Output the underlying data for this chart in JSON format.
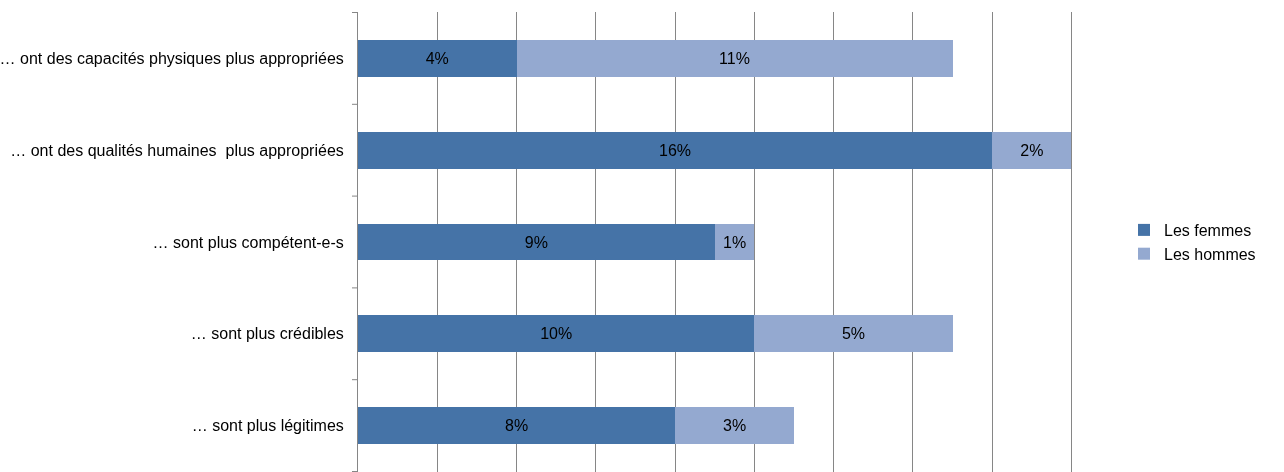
{
  "chart_data": {
    "type": "bar",
    "orientation": "horizontal",
    "stacked": true,
    "categories": [
      "… ont des capacités physiques plus appropriées",
      "… ont des qualités humaines  plus appropriées",
      "… sont plus compétent-e-s",
      "… sont plus crédibles",
      "… sont plus légitimes"
    ],
    "series": [
      {
        "name": "Les femmes",
        "color": "#4573a7",
        "values": [
          4,
          16,
          9,
          10,
          8
        ],
        "value_labels": [
          "4%",
          "16%",
          "9%",
          "10%",
          "8%"
        ]
      },
      {
        "name": "Les hommes",
        "color": "#94a9d0",
        "values": [
          11,
          2,
          1,
          5,
          3
        ],
        "value_labels": [
          "11%",
          "2%",
          "1%",
          "5%",
          "3%"
        ]
      }
    ],
    "grid": "x",
    "legend": "right",
    "tick_labels": "y"
  }
}
